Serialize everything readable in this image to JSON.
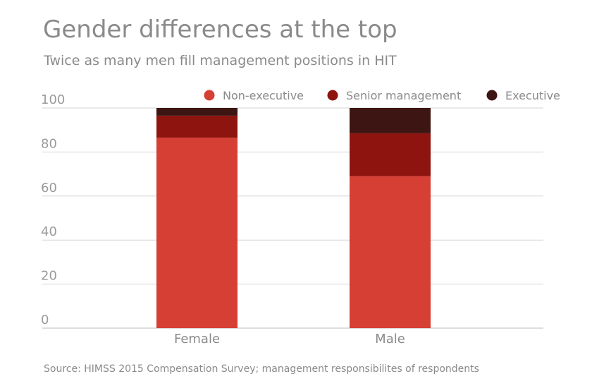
{
  "chart_data": {
    "type": "bar",
    "stacked": true,
    "title": "Gender differences at the top",
    "subtitle": "Twice as many men fill management positions in HIT",
    "source": "Source: HIMSS 2015 Compensation Survey; management responsibilites of respondents",
    "categories": [
      "Female",
      "Male"
    ],
    "series": [
      {
        "name": "Non-executive",
        "color": "#d63f34",
        "values": [
          86.5,
          69
        ]
      },
      {
        "name": "Senior management",
        "color": "#8e150f",
        "values": [
          10,
          19.5
        ]
      },
      {
        "name": "Executive",
        "color": "#3d1512",
        "values": [
          3.5,
          11.5
        ]
      }
    ],
    "ylim": [
      0,
      100
    ],
    "yticks": [
      0,
      20,
      40,
      60,
      80,
      100
    ],
    "grid": true,
    "legend": "top-right"
  }
}
